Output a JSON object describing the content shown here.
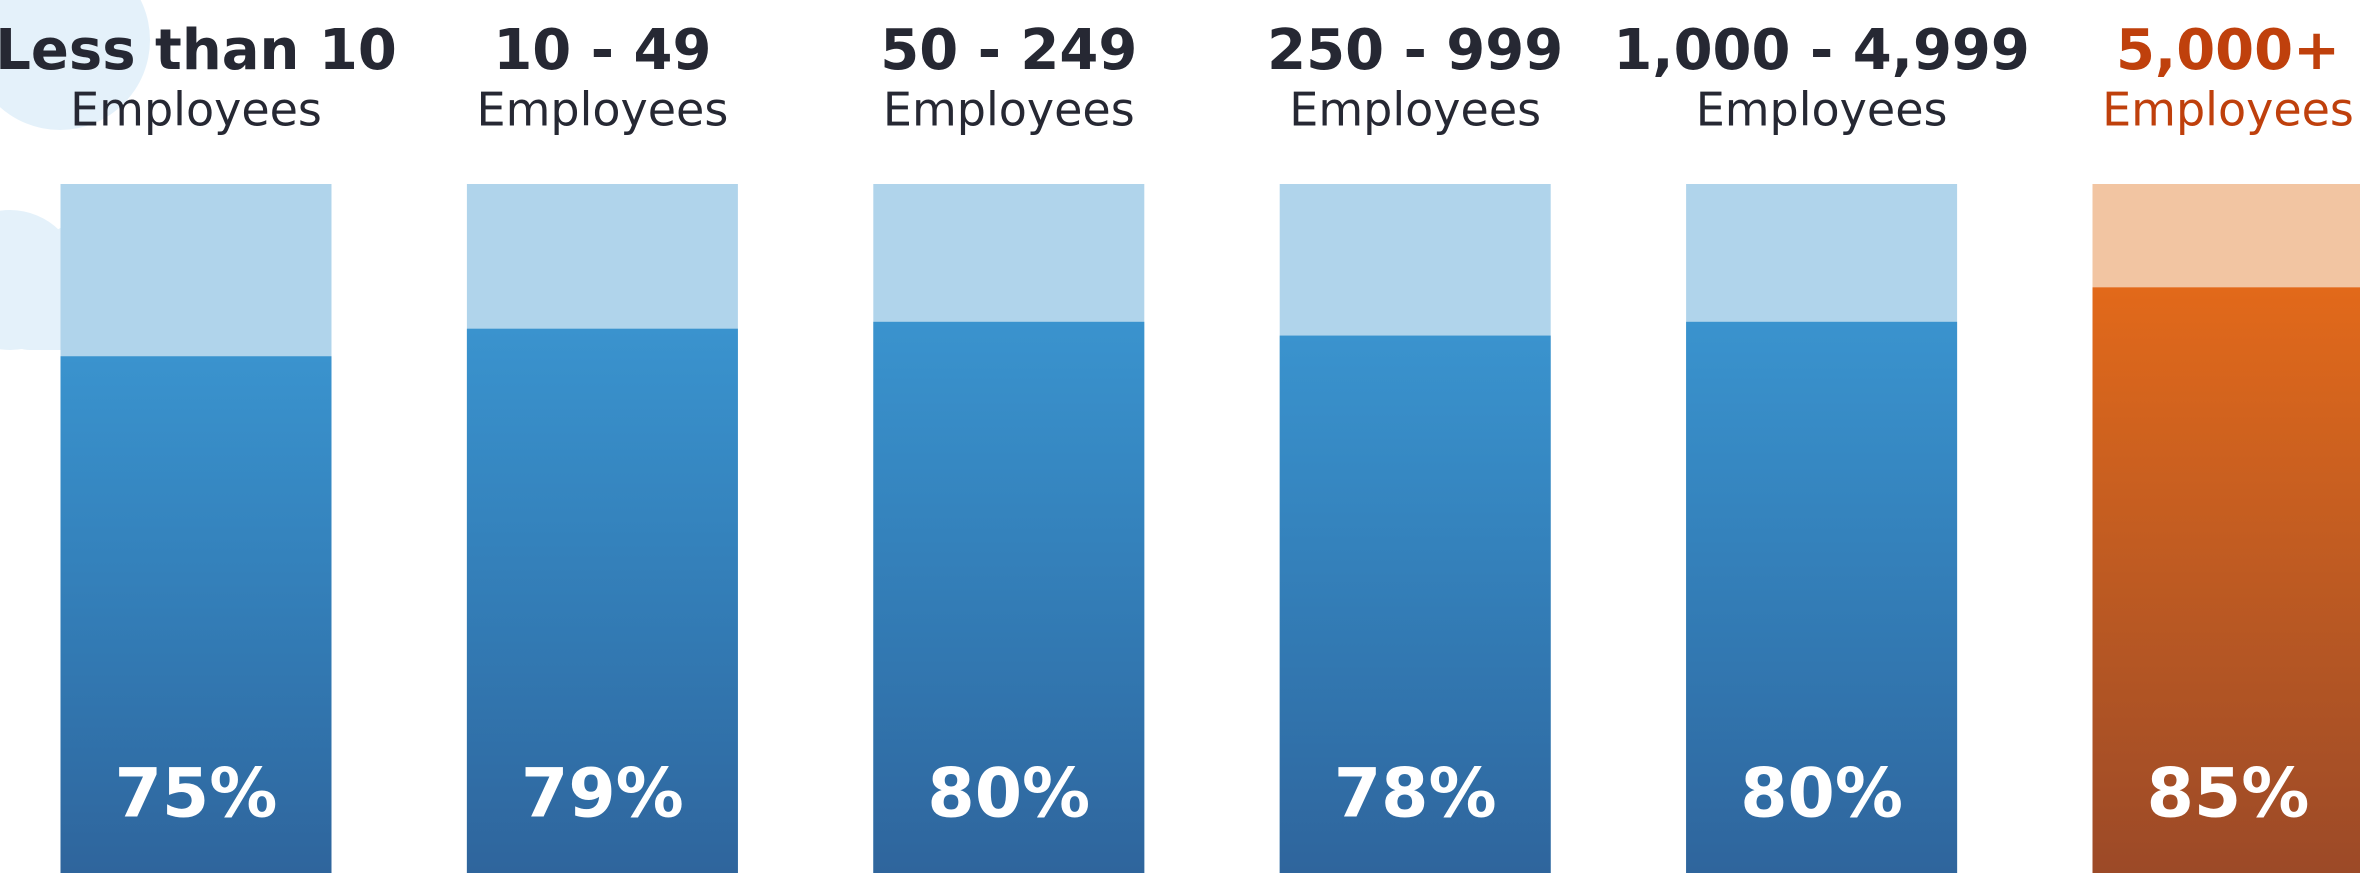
{
  "chart_data": {
    "type": "bar",
    "categories": [
      [
        "Less than 10",
        "Employees"
      ],
      [
        "10 - 49",
        "Employees"
      ],
      [
        "50 - 249",
        "Employees"
      ],
      [
        "250 - 999",
        "Employees"
      ],
      [
        "1,000 - 4,999",
        "Employees"
      ],
      [
        "5,000+",
        "Employees"
      ]
    ],
    "values": [
      75,
      79,
      80,
      78,
      80,
      85
    ],
    "value_labels": [
      "75%",
      "79%",
      "80%",
      "78%",
      "80%",
      "85%"
    ],
    "ylim": [
      0,
      100
    ],
    "colors": [
      "#3a93ce",
      "#3a93ce",
      "#3a93ce",
      "#3a93ce",
      "#3a93ce",
      "#e2691a"
    ],
    "track_colors": [
      "#b0d4eb",
      "#b0d4eb",
      "#b0d4eb",
      "#b0d4eb",
      "#b0d4eb",
      "#f2c5a2"
    ],
    "label_colors": [
      "#262833",
      "#262833",
      "#262833",
      "#262833",
      "#262833",
      "#bf400c"
    ]
  }
}
